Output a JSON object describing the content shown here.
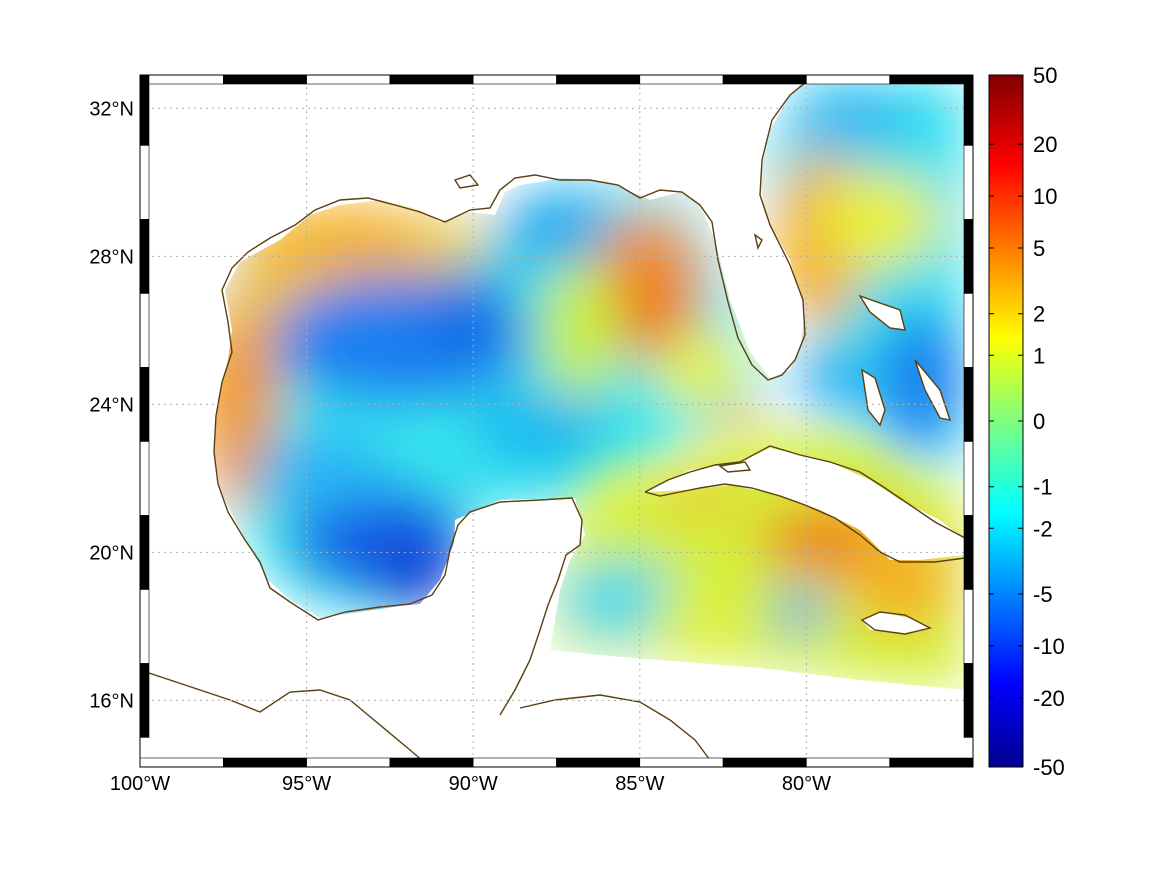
{
  "map": {
    "lon_range": [
      -100,
      -75
    ],
    "lat_range": [
      14.2,
      32.9
    ],
    "lon_ticks": [
      {
        "value": -100,
        "label": "100°W"
      },
      {
        "value": -95,
        "label": "95°W"
      },
      {
        "value": -90,
        "label": "90°W"
      },
      {
        "value": -85,
        "label": "85°W"
      },
      {
        "value": -80,
        "label": "80°W"
      }
    ],
    "lat_ticks": [
      {
        "value": 32,
        "label": "32°N"
      },
      {
        "value": 28,
        "label": "28°N"
      },
      {
        "value": 24,
        "label": "24°N"
      },
      {
        "value": 20,
        "label": "20°N"
      },
      {
        "value": 16,
        "label": "16°N"
      }
    ],
    "grid": true,
    "coastline_color": "#5a3f10",
    "projection_frame": "alternating black/white degree bars"
  },
  "colorbar": {
    "orientation": "vertical",
    "placement": "right",
    "colormap": "jet",
    "tick_labels": [
      "50",
      "20",
      "10",
      "5",
      "2",
      "1",
      "0",
      "-1",
      "-2",
      "-5",
      "-10",
      "-20",
      "-50"
    ],
    "range": [
      -50,
      50
    ]
  },
  "colors": {
    "jet_low": "#00008f",
    "jet_mid": "#7fff7f",
    "jet_high": "#800000",
    "land": "#ffffff"
  }
}
